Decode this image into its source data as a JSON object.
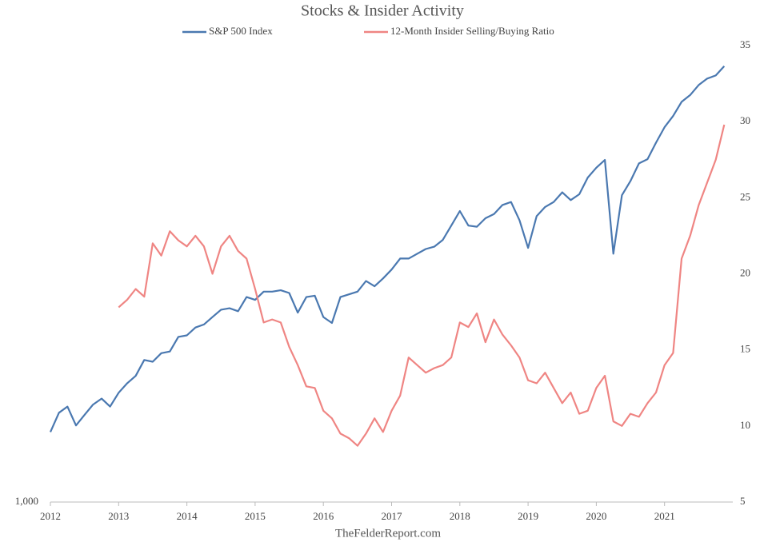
{
  "chart_data": {
    "type": "line",
    "title": "Stocks & Insider Activity",
    "source": "TheFelderReport.com",
    "x": [
      2012,
      2012.125,
      2012.25,
      2012.375,
      2012.5,
      2012.625,
      2012.75,
      2012.875,
      2013,
      2013.125,
      2013.25,
      2013.375,
      2013.5,
      2013.625,
      2013.75,
      2013.875,
      2014,
      2014.125,
      2014.25,
      2014.375,
      2014.5,
      2014.625,
      2014.75,
      2014.875,
      2015,
      2015.125,
      2015.25,
      2015.375,
      2015.5,
      2015.625,
      2015.75,
      2015.875,
      2016,
      2016.125,
      2016.25,
      2016.375,
      2016.5,
      2016.625,
      2016.75,
      2016.875,
      2017,
      2017.125,
      2017.25,
      2017.375,
      2017.5,
      2017.625,
      2017.75,
      2017.875,
      2018,
      2018.125,
      2018.25,
      2018.375,
      2018.5,
      2018.625,
      2018.75,
      2018.875,
      2019,
      2019.125,
      2019.25,
      2019.375,
      2019.5,
      2019.625,
      2019.75,
      2019.875,
      2020,
      2020.125,
      2020.25,
      2020.375,
      2020.5,
      2020.625,
      2020.75,
      2020.875,
      2021,
      2021.125,
      2021.25,
      2021.375,
      2021.5,
      2021.625,
      2021.75,
      2021.875
    ],
    "series": [
      {
        "name": "S&P 500 Index",
        "color": "#4a78b0",
        "axis": "y",
        "values": [
          1280,
          1370,
          1400,
          1310,
          1360,
          1410,
          1440,
          1400,
          1470,
          1520,
          1560,
          1650,
          1640,
          1690,
          1700,
          1790,
          1800,
          1850,
          1870,
          1920,
          1970,
          1980,
          1960,
          2060,
          2040,
          2100,
          2100,
          2110,
          2090,
          1950,
          2060,
          2070,
          1920,
          1880,
          2060,
          2080,
          2100,
          2180,
          2140,
          2200,
          2270,
          2360,
          2360,
          2400,
          2440,
          2460,
          2520,
          2650,
          2790,
          2650,
          2640,
          2720,
          2760,
          2850,
          2880,
          2700,
          2450,
          2740,
          2830,
          2880,
          2980,
          2900,
          2960,
          3140,
          3250,
          3340,
          2400,
          2950,
          3100,
          3300,
          3350,
          3550,
          3750,
          3900,
          4100,
          4200,
          4350,
          4450,
          4500,
          4650
        ]
      },
      {
        "name": "12-Month Insider Selling/Buying Ratio",
        "color": "#ef8583",
        "axis": "y2",
        "values": [
          null,
          null,
          null,
          null,
          null,
          null,
          null,
          null,
          17.8,
          18.3,
          19.0,
          18.5,
          22.0,
          21.2,
          22.8,
          22.2,
          21.8,
          22.5,
          21.8,
          20.0,
          21.8,
          22.5,
          21.5,
          21.0,
          19.0,
          16.8,
          17.0,
          16.8,
          15.2,
          14.0,
          12.6,
          12.5,
          11.0,
          10.5,
          9.5,
          9.2,
          8.7,
          9.5,
          10.5,
          9.6,
          11.0,
          12.0,
          14.5,
          14.0,
          13.5,
          13.8,
          14.0,
          14.5,
          16.8,
          16.5,
          17.4,
          15.5,
          17.0,
          16.0,
          15.3,
          14.5,
          13.0,
          12.8,
          13.5,
          12.5,
          11.5,
          12.2,
          10.8,
          11.0,
          12.5,
          13.3,
          10.3,
          10.0,
          10.8,
          10.6,
          11.5,
          12.2,
          14.0,
          14.8,
          21.0,
          22.5,
          24.5,
          26.0,
          27.5,
          29.8
        ]
      }
    ],
    "xlim": [
      2012,
      2022
    ],
    "xticks": [
      2012,
      2013,
      2014,
      2015,
      2016,
      2017,
      2018,
      2019,
      2020,
      2021
    ],
    "ylim": [
      1000,
      5000
    ],
    "yscale": "log",
    "yticks": [
      {
        "value": 1000,
        "label": "1,000"
      }
    ],
    "y2lim": [
      5,
      35
    ],
    "y2ticks": [
      5,
      10,
      15,
      20,
      25,
      30,
      35
    ]
  }
}
